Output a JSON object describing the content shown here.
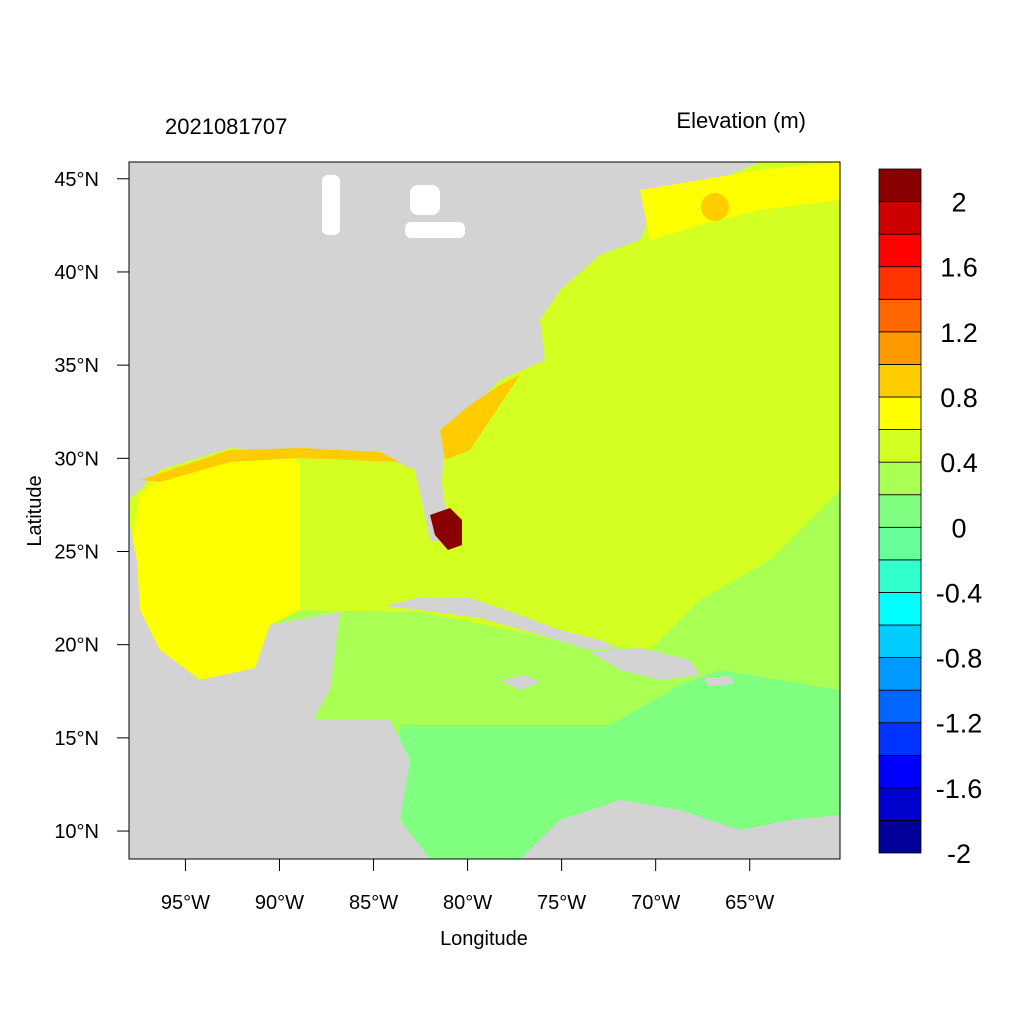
{
  "title_left": "2021081707",
  "title_right": "Elevation (m)",
  "x_axis": {
    "label": "Longitude",
    "ticks": [
      {
        "lon": -95,
        "label": "95°W"
      },
      {
        "lon": -90,
        "label": "90°W"
      },
      {
        "lon": -85,
        "label": "85°W"
      },
      {
        "lon": -80,
        "label": "80°W"
      },
      {
        "lon": -75,
        "label": "75°W"
      },
      {
        "lon": -70,
        "label": "70°W"
      },
      {
        "lon": -65,
        "label": "65°W"
      }
    ]
  },
  "y_axis": {
    "label": "Latitude",
    "ticks": [
      {
        "lat": 45,
        "label": "45°N"
      },
      {
        "lat": 40,
        "label": "40°N"
      },
      {
        "lat": 35,
        "label": "35°N"
      },
      {
        "lat": 30,
        "label": "30°N"
      },
      {
        "lat": 25,
        "label": "25°N"
      },
      {
        "lat": 20,
        "label": "20°N"
      },
      {
        "lat": 15,
        "label": "15°N"
      },
      {
        "lat": 10,
        "label": "10°N"
      }
    ]
  },
  "map_extent": {
    "lon": [
      -98,
      -60.2
    ],
    "lat": [
      8.5,
      45.9
    ]
  },
  "colorbar": {
    "colors": [
      "#000099",
      "#0000cc",
      "#0000ff",
      "#0033ff",
      "#0066ff",
      "#0099ff",
      "#00ccff",
      "#00ffff",
      "#33ffcc",
      "#66ff99",
      "#80ff80",
      "#aaff55",
      "#d4ff22",
      "#ffff00",
      "#ffcc00",
      "#ff9900",
      "#ff6600",
      "#ff3300",
      "#ff0000",
      "#cc0000",
      "#880000"
    ],
    "labels": [
      "2",
      "1.6",
      "1.2",
      "0.8",
      "0.4",
      "0",
      "-0.4",
      "-0.8",
      "-1.2",
      "-1.6",
      "-2"
    ]
  },
  "colors": {
    "land": "#d3d3d3",
    "gulf": "#ffff00",
    "atlantic": "#d4ff22",
    "caribbean": "#aaff55",
    "south_caribbean": "#80ff80",
    "coast_high": "#ffcc00",
    "surge": "#880000"
  }
}
